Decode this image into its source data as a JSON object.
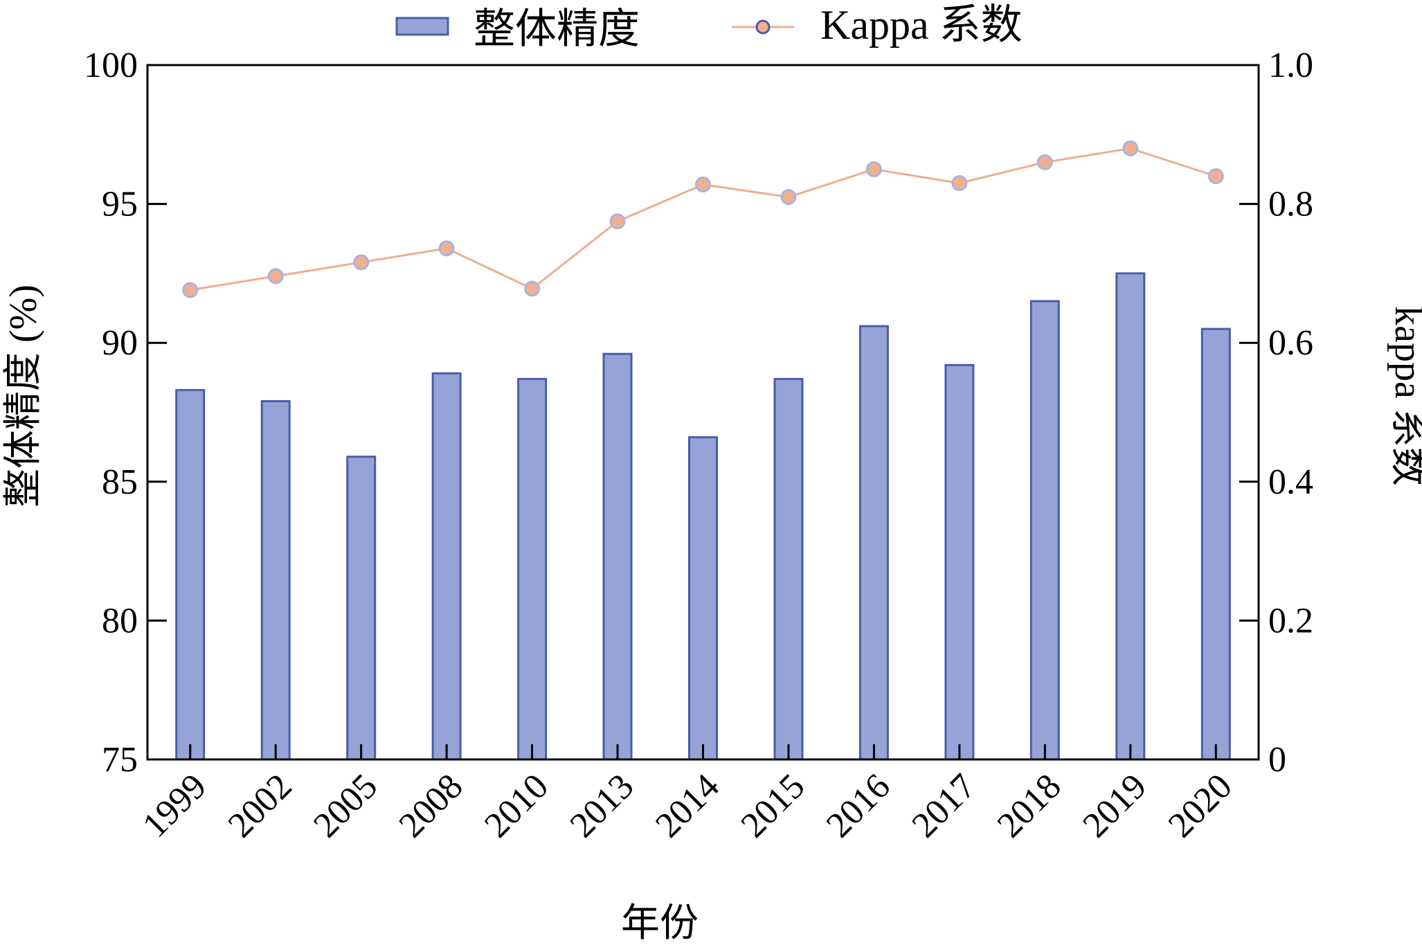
{
  "chart_data": {
    "type": "bar",
    "categories": [
      "1999",
      "2002",
      "2005",
      "2008",
      "2010",
      "2013",
      "2014",
      "2015",
      "2016",
      "2017",
      "2018",
      "2019",
      "2020"
    ],
    "series": [
      {
        "name": "整体精度",
        "type": "bar",
        "axis": "left",
        "values": [
          88.3,
          87.9,
          85.9,
          88.9,
          88.7,
          89.6,
          86.6,
          88.7,
          90.6,
          89.2,
          91.5,
          92.5,
          90.5
        ],
        "fill_color": "#96a3d6",
        "stroke_color": "#4a5dab"
      },
      {
        "name": "Kappa 系数",
        "type": "line",
        "axis": "right",
        "values": [
          0.676,
          0.696,
          0.716,
          0.736,
          0.678,
          0.775,
          0.828,
          0.81,
          0.85,
          0.83,
          0.86,
          0.88,
          0.84
        ],
        "line_color": "#eeae90",
        "marker_fill": "#f0b090",
        "marker_stroke": "#a9b4de"
      }
    ],
    "xlabel": "年份",
    "ylabel": "整体精度 (%)",
    "y2label": "kappa 系数",
    "ylim": [
      75,
      100
    ],
    "y2lim": [
      0,
      1.0
    ],
    "yticks": [
      "75",
      "80",
      "85",
      "90",
      "95",
      "100"
    ],
    "y2ticks": [
      "0",
      "0.2",
      "0.4",
      "0.6",
      "0.8",
      "1.0"
    ],
    "legend_position": "top-center",
    "grid": false
  }
}
